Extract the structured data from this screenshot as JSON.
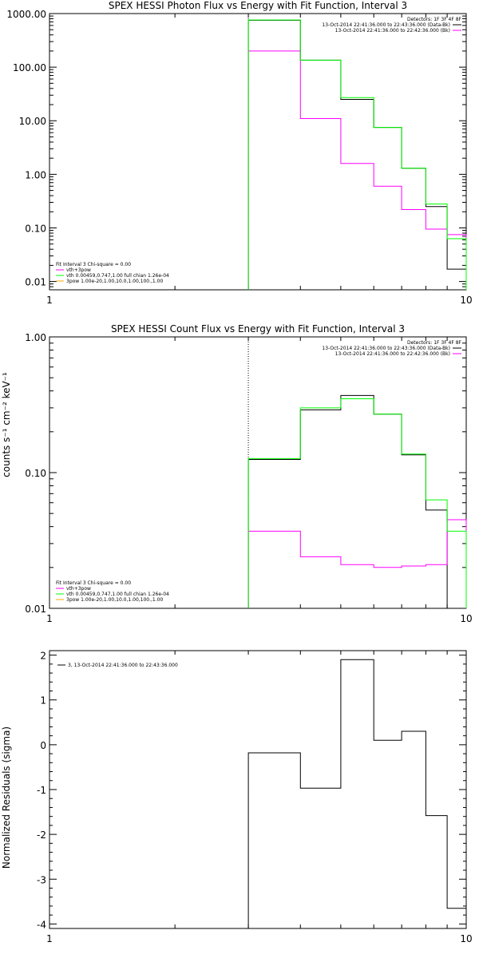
{
  "chart_data": [
    {
      "type": "line",
      "title": "SPEX HESSI Photon Flux vs Energy with Fit Function, Interval 3",
      "xlabel": "",
      "ylabel": "",
      "xscale": "log",
      "yscale": "log",
      "xlim": [
        1,
        10
      ],
      "ylim": [
        0.007,
        1000
      ],
      "x_tick_labels": [
        "1",
        "10"
      ],
      "y_tick_labels": [
        "0.01",
        "0.10",
        "1.00",
        "10.00",
        "100.00",
        "1000.00"
      ],
      "y_tick_values": [
        0.01,
        0.1,
        1,
        10,
        100,
        1000
      ],
      "threshold_line_x": 3.0,
      "bin_edges": [
        3,
        4,
        5,
        6,
        7,
        8,
        9,
        10
      ],
      "series": [
        {
          "name": "",
          "color": "#000000",
          "values": [
            750,
            135,
            25,
            7.5,
            1.3,
            0.25,
            0.017
          ]
        },
        {
          "name": "vth+3pow",
          "color": "#ff00ff",
          "values": [
            200,
            11,
            1.6,
            0.6,
            0.22,
            0.095,
            0.075
          ]
        },
        {
          "name": "vth 0.00459,0.747,1.00  full chian 1.26e-04",
          "color": "#00ff00",
          "values": [
            760,
            135,
            27,
            7.5,
            1.3,
            0.28,
            0.063
          ]
        }
      ],
      "legend_top_right": {
        "title": "Detectors: 1F 3F 4F 8F",
        "entries": [
          {
            "label": "13-Oct-2014 22:41:36.000 to 22:43:36.000 (Data-Bk)",
            "color": "#000000"
          },
          {
            "label": "13-Oct-2014 22:41:36.000 to 22:42:36.000 (Bk)",
            "color": "#ff00ff"
          }
        ]
      },
      "legend_bottom_left": {
        "title": "Fit Interval  3   Chi-square = 0.00",
        "entries": [
          {
            "label": "vth+3pow",
            "color": "#ff00ff"
          },
          {
            "label": "vth 0.00459,0.747,1.00  full chian 1.26e-04",
            "color": "#00ff00"
          },
          {
            "label": "3pow 1.00e-20,1.00,10.0,1.00,100.,1.00",
            "color": "#ffa500"
          }
        ]
      }
    },
    {
      "type": "line",
      "title": "SPEX HESSI Count Flux vs Energy with Fit Function, Interval 3",
      "xlabel": "",
      "ylabel": "counts s⁻¹ cm⁻² keV⁻¹",
      "xscale": "log",
      "yscale": "log",
      "xlim": [
        1,
        10
      ],
      "ylim": [
        0.01,
        1
      ],
      "x_tick_labels": [
        "1",
        "10"
      ],
      "y_tick_labels": [
        "0.01",
        "0.10",
        "1.00"
      ],
      "y_tick_values": [
        0.01,
        0.1,
        1
      ],
      "threshold_line_x": 3.0,
      "bin_edges": [
        3,
        4,
        5,
        6,
        7,
        8,
        9,
        10
      ],
      "series": [
        {
          "name": "",
          "color": "#000000",
          "values": [
            0.125,
            0.29,
            0.37,
            0.27,
            0.135,
            0.053,
            0.01
          ]
        },
        {
          "name": "vth+3pow",
          "color": "#ff00ff",
          "values": [
            0.037,
            0.024,
            0.021,
            0.02,
            0.0205,
            0.021,
            0.045
          ]
        },
        {
          "name": "vth 0.00459,0.747,1.00  full chian 1.26e-04",
          "color": "#00ff00",
          "values": [
            0.127,
            0.3,
            0.35,
            0.27,
            0.137,
            0.063,
            0.037
          ]
        }
      ],
      "legend_top_right": {
        "title": "Detectors: 1F 3F 4F 8F",
        "entries": [
          {
            "label": "13-Oct-2014 22:41:36.000 to 22:43:36.000 (Data-Bk)",
            "color": "#000000"
          },
          {
            "label": "13-Oct-2014 22:41:36.000 to 22:42:36.000 (Bk)",
            "color": "#ff00ff"
          }
        ]
      },
      "legend_bottom_left": {
        "title": "Fit Interval  3   Chi-square = 0.00",
        "entries": [
          {
            "label": "vth+3pow",
            "color": "#ff00ff"
          },
          {
            "label": "vth 0.00459,0.747,1.00  full chian 1.26e-04",
            "color": "#00ff00"
          },
          {
            "label": "3pow 1.00e-20,1.00,10.0,1.00,100.,1.00",
            "color": "#ffa500"
          }
        ]
      }
    },
    {
      "type": "line",
      "title": "",
      "xlabel": "",
      "ylabel": "Normalized Residuals (sigma)",
      "xscale": "log",
      "yscale": "linear",
      "xlim": [
        1,
        10
      ],
      "ylim": [
        -4.1,
        2.1
      ],
      "x_tick_labels": [
        "1",
        "10"
      ],
      "y_tick_labels": [
        "2",
        "1",
        "0",
        "-1",
        "-2",
        "-3",
        "-4"
      ],
      "y_tick_values": [
        2,
        1,
        0,
        -1,
        -2,
        -3,
        -4
      ],
      "bin_edges": [
        3,
        4,
        5,
        6,
        7,
        8,
        9,
        10
      ],
      "series": [
        {
          "name": "3, 13-Oct-2014 22:41:36.000 to 22:43:36.000",
          "color": "#000000",
          "values": [
            -0.18,
            -0.97,
            1.9,
            0.1,
            0.3,
            -1.58,
            -3.65
          ]
        }
      ],
      "legend_top_left": {
        "entries": [
          {
            "label": "3, 13-Oct-2014 22:41:36.000 to 22:43:36.000",
            "color": "#000000"
          }
        ]
      }
    }
  ]
}
